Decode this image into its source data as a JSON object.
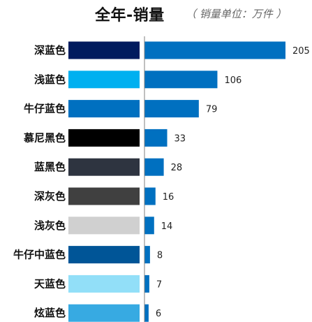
{
  "header": {
    "title": "全年-销量",
    "subtitle": "（ 销量单位：万件 ）"
  },
  "chart_data": {
    "type": "bar",
    "orientation": "horizontal",
    "title": "全年-销量",
    "unit": "万件",
    "categories": [
      "深蓝色",
      "浅蓝色",
      "牛仔蓝色",
      "慕尼黑色",
      "蓝黑色",
      "深灰色",
      "浅灰色",
      "牛仔中蓝色",
      "天蓝色",
      "炫蓝色"
    ],
    "values": [
      205,
      106,
      79,
      33,
      28,
      16,
      14,
      8,
      7,
      6
    ],
    "swatch_colors": [
      "#001B5E",
      "#00B0F0",
      "#0070C0",
      "#000000",
      "#2E3440",
      "#404040",
      "#D0D0D0",
      "#005597",
      "#92DFF8",
      "#37AAE2"
    ],
    "bar_color": "#0070C0",
    "xlim": [
      0,
      205
    ],
    "grid": false,
    "legend": "none"
  }
}
